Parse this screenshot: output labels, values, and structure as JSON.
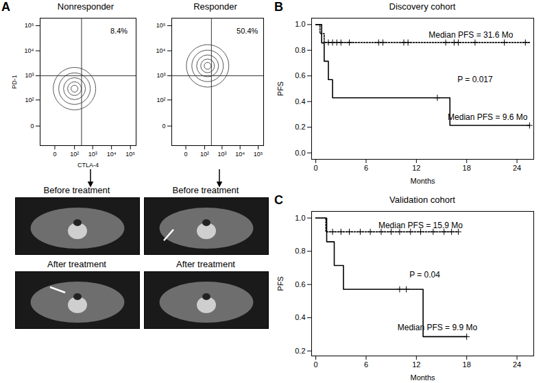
{
  "chart_data": [
    {
      "panel": "A",
      "type": "contour",
      "title": "Nonresponder",
      "x_label": "CTLA-4",
      "y_label": "PD-1",
      "xlim": [
        -50,
        200000
      ],
      "ylim": [
        -50,
        200000
      ],
      "xticks": [
        0,
        {
          "value": 100,
          "label": "10²"
        },
        {
          "value": 1000,
          "label": "10³"
        },
        {
          "value": 10000,
          "label": "10⁴"
        },
        {
          "value": 100000,
          "label": "10⁵"
        }
      ],
      "yticks": [
        0,
        {
          "value": 100,
          "label": "10²"
        },
        {
          "value": 1000,
          "label": "10³"
        },
        {
          "value": 10000,
          "label": "10⁴"
        },
        {
          "value": 100000,
          "label": "10⁵"
        }
      ],
      "gates": {
        "x": 250,
        "y": 1000
      },
      "population": {
        "x": 100,
        "y": 300
      },
      "color": "#444444",
      "annotations": [
        {
          "text": "8.4%",
          "x": 25000,
          "y": 60000
        }
      ]
    },
    {
      "type": "contour",
      "title": "Responder",
      "xlim": [
        -50,
        200000
      ],
      "ylim": [
        -50,
        200000
      ],
      "xticks": [
        0,
        {
          "value": 100,
          "label": "10²"
        },
        {
          "value": 1000,
          "label": "10³"
        },
        {
          "value": 10000,
          "label": "10⁴"
        },
        {
          "value": 100000,
          "label": "10⁵"
        }
      ],
      "yticks": [
        0,
        {
          "value": 100,
          "label": "10²"
        },
        {
          "value": 1000,
          "label": "10³"
        },
        {
          "value": 10000,
          "label": "10⁴"
        },
        {
          "value": 100000,
          "label": "10⁵"
        }
      ],
      "gates": {
        "x": 250,
        "y": 1000
      },
      "population": {
        "x": 150,
        "y": 2500
      },
      "color": "#444444",
      "annotations": [
        {
          "text": "50.4%",
          "x": 25000,
          "y": 60000
        }
      ]
    },
    {
      "panel": "B",
      "type": "line",
      "title": "Discovery cohort",
      "x_label": "Months",
      "y_label": "PFS",
      "xlim": [
        -0.5,
        26
      ],
      "ylim": [
        -0.05,
        1.05
      ],
      "xticks": [
        0,
        6,
        12,
        18,
        24
      ],
      "yticks": [
        {
          "value": 0,
          "label": "0.0"
        },
        0.2,
        0.4,
        0.6,
        0.8,
        {
          "value": 1,
          "label": "1.0"
        }
      ],
      "series": [
        {
          "color": "#000000",
          "line_style": "dotted",
          "marker": "plus",
          "x": [
            0,
            0.5,
            1,
            25.5
          ],
          "y": [
            1,
            0.93,
            0.86,
            0.86
          ],
          "censor_x": [
            1.5,
            2,
            2.5,
            3,
            4,
            7.5,
            8,
            10.5,
            11,
            15.5,
            16.5,
            17,
            19,
            22.5,
            25
          ],
          "censor_y": [
            0.86,
            0.86,
            0.86,
            0.86,
            0.86,
            0.86,
            0.86,
            0.86,
            0.86,
            0.86,
            0.86,
            0.86,
            0.86,
            0.86,
            0.86
          ]
        },
        {
          "color": "#000000",
          "line_style": "solid",
          "marker": "plus",
          "x": [
            0,
            0.7,
            1,
            1.5,
            2,
            16,
            25.5
          ],
          "y": [
            1,
            0.857,
            0.714,
            0.571,
            0.429,
            0.214,
            0.214
          ],
          "censor_x": [
            14.5,
            25.5
          ],
          "censor_y": [
            0.429,
            0.214
          ]
        }
      ],
      "annotations": [
        {
          "text": "Median PFS = 31.6 Mo",
          "x": 18.5,
          "y": 0.92
        },
        {
          "text": "P = 0.017",
          "x": 19,
          "y": 0.57
        },
        {
          "text": "Median PFS = 9.6 Mo",
          "x": 20.5,
          "y": 0.28
        }
      ]
    },
    {
      "panel": "C",
      "type": "line",
      "title": "Validation cohort",
      "x_label": "Months",
      "y_label": "PFS",
      "xlim": [
        -0.5,
        26
      ],
      "ylim": [
        0.17,
        1.04
      ],
      "xticks": [
        0,
        6,
        12,
        18,
        24
      ],
      "yticks": [
        0.2,
        0.4,
        0.6,
        0.8,
        {
          "value": 1,
          "label": "1.0"
        }
      ],
      "series": [
        {
          "color": "#000000",
          "line_style": "dotted",
          "marker": "plus",
          "x": [
            0,
            1.2,
            17
          ],
          "y": [
            1,
            0.917,
            0.917
          ],
          "censor_x": [
            2,
            3,
            4,
            5.3,
            6.5,
            7.8,
            9,
            10,
            11.3,
            12.5,
            14,
            15.3,
            16.2,
            17
          ],
          "censor_y": [
            0.917,
            0.917,
            0.917,
            0.917,
            0.917,
            0.917,
            0.917,
            0.917,
            0.917,
            0.917,
            0.917,
            0.917,
            0.917,
            0.917
          ]
        },
        {
          "color": "#000000",
          "line_style": "solid",
          "marker": "plus",
          "x": [
            0,
            1.3,
            2.2,
            3.3,
            12.8,
            18
          ],
          "y": [
            1,
            0.857,
            0.714,
            0.571,
            0.286,
            0.286
          ],
          "censor_x": [
            10,
            10.8,
            18
          ],
          "censor_y": [
            0.571,
            0.571,
            0.286
          ]
        }
      ],
      "annotations": [
        {
          "text": "Median PFS = 15.9 Mo",
          "x": 12.5,
          "y": 0.955
        },
        {
          "text": "P = 0.04",
          "x": 13,
          "y": 0.66
        },
        {
          "text": "Median PFS = 9.9 Mo",
          "x": 14.5,
          "y": 0.34
        }
      ]
    }
  ],
  "ct_images": [
    [
      "Before treatment",
      "After treatment"
    ],
    [
      "Before treatment",
      "After treatment"
    ]
  ]
}
